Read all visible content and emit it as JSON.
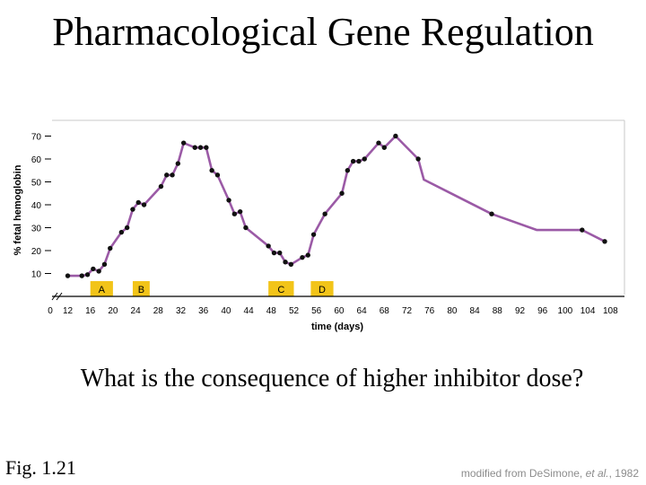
{
  "slide": {
    "title": "Pharmacological Gene Regulation",
    "question": "What is the consequence of higher inhibitor dose?",
    "figure_label": "Fig. 1.21",
    "credit_prefix": "modified from De",
    "credit_author": "Simone,",
    "credit_etal": "et al.",
    "credit_year": ", 1982"
  },
  "colors": {
    "line": "#9b5aa6",
    "point": "#111111",
    "marker_box": "#f2c419",
    "axis": "#000000",
    "frame": "#c8c8c8"
  },
  "chart_data": {
    "type": "line",
    "xlabel": "time (days)",
    "ylabel": "% fetal hemoglobin",
    "xlim": [
      10,
      108
    ],
    "ylim": [
      0,
      75
    ],
    "x_ticks": [
      "0",
      "12",
      "16",
      "20",
      "24",
      "28",
      "32",
      "36",
      "40",
      "44",
      "48",
      "52",
      "56",
      "60",
      "64",
      "68",
      "72",
      "76",
      "80",
      "84",
      "88",
      "92",
      "96",
      "100",
      "104",
      "108"
    ],
    "y_ticks": [
      70,
      60,
      50,
      40,
      30,
      20,
      10
    ],
    "axis_break": true,
    "series": [
      {
        "points": [
          [
            12,
            9
          ],
          [
            14.5,
            9
          ],
          [
            15.5,
            9.5
          ],
          [
            16.5,
            12
          ],
          [
            17.5,
            11
          ],
          [
            18.5,
            14
          ],
          [
            19.5,
            21
          ],
          [
            21.5,
            28
          ],
          [
            22.5,
            30
          ],
          [
            23.5,
            38
          ],
          [
            24.5,
            41
          ],
          [
            25.5,
            40
          ],
          [
            28.5,
            48
          ],
          [
            29.5,
            53
          ],
          [
            30.5,
            53
          ],
          [
            31.5,
            58
          ],
          [
            32.5,
            67
          ],
          [
            34.5,
            65
          ],
          [
            35.5,
            65
          ],
          [
            36.5,
            65
          ],
          [
            37.5,
            55
          ],
          [
            38.5,
            53
          ],
          [
            40.5,
            42
          ],
          [
            41.5,
            36
          ],
          [
            42.5,
            37
          ],
          [
            43.5,
            30
          ],
          [
            47.5,
            22
          ],
          [
            48.5,
            19
          ],
          [
            49.5,
            19
          ],
          [
            50.5,
            15
          ],
          [
            51.5,
            14
          ],
          [
            53.5,
            17
          ],
          [
            54.5,
            18
          ],
          [
            55.5,
            27
          ],
          [
            57.5,
            36
          ],
          [
            60.5,
            45
          ],
          [
            61.5,
            55
          ],
          [
            62.5,
            59
          ],
          [
            63.5,
            59
          ],
          [
            64.5,
            60
          ],
          [
            67,
            67
          ],
          [
            68,
            65
          ],
          [
            70,
            70
          ],
          [
            74,
            60
          ],
          [
            75,
            51
          ],
          [
            87,
            36
          ],
          [
            95,
            29
          ],
          [
            103,
            29
          ],
          [
            107,
            24
          ]
        ],
        "marker_only": [
          [
            75,
            51
          ],
          [
            95,
            29
          ]
        ]
      }
    ],
    "treatment_periods": [
      {
        "label": "A",
        "x_start": 16,
        "x_end": 20
      },
      {
        "label": "B",
        "x_start": 23.5,
        "x_end": 26.5
      },
      {
        "label": "C",
        "x_start": 47.5,
        "x_end": 52
      },
      {
        "label": "D",
        "x_start": 55,
        "x_end": 59
      }
    ]
  }
}
